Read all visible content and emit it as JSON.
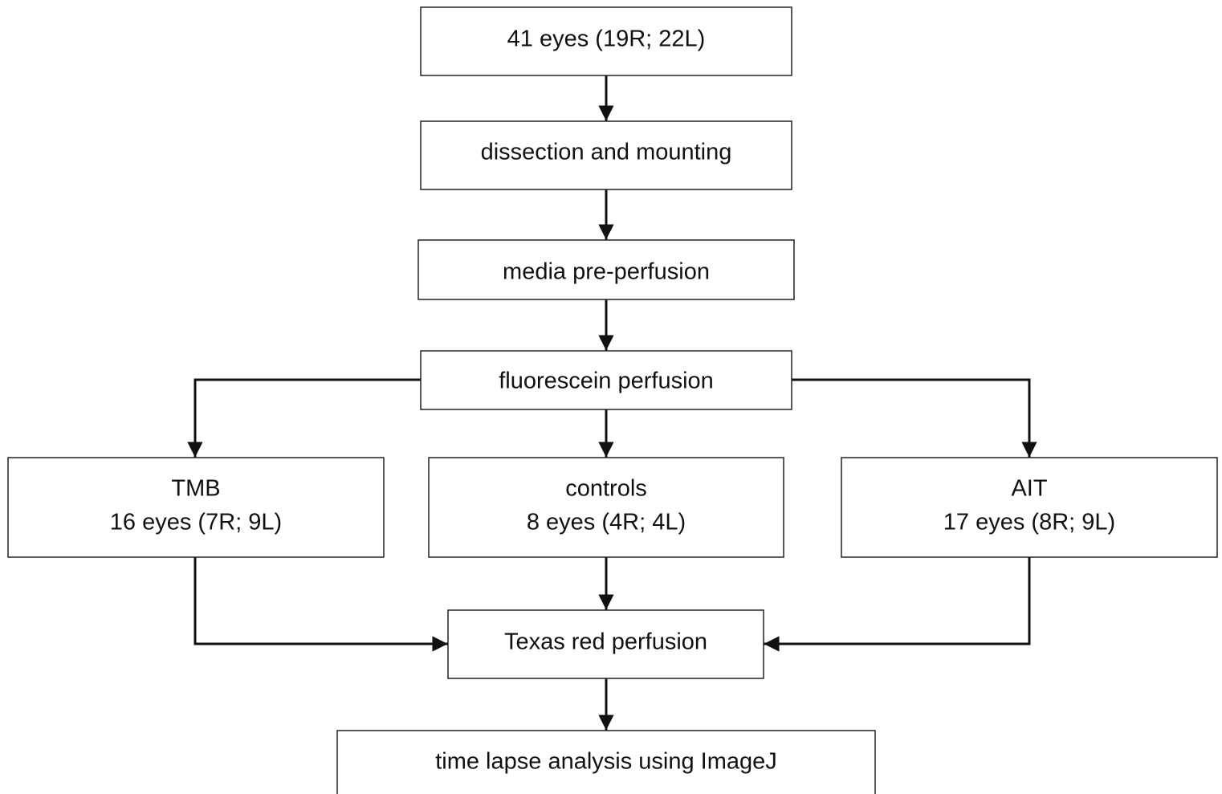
{
  "nodes": [
    {
      "lines": [
        "41 eyes (19R; 22L)"
      ]
    },
    {
      "lines": [
        "dissection and mounting"
      ]
    },
    {
      "lines": [
        "media pre-perfusion"
      ]
    },
    {
      "lines": [
        "fluorescein perfusion"
      ]
    },
    {
      "lines": [
        "TMB",
        "16 eyes (7R; 9L)"
      ]
    },
    {
      "lines": [
        "controls",
        "8 eyes (4R; 4L)"
      ]
    },
    {
      "lines": [
        "AIT",
        "17 eyes (8R; 9L)"
      ]
    },
    {
      "lines": [
        "Texas red perfusion"
      ]
    },
    {
      "lines": [
        "time lapse analysis using ImageJ"
      ]
    }
  ]
}
